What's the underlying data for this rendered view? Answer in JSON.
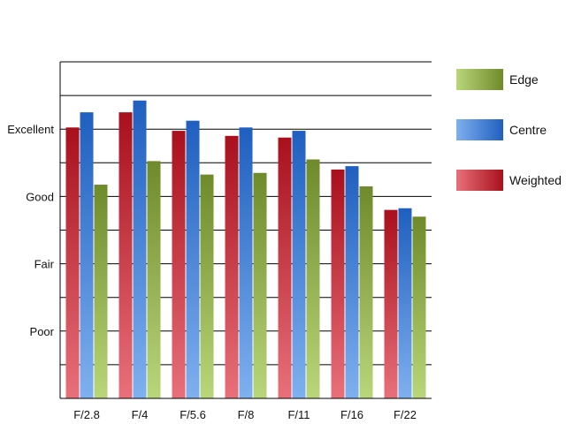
{
  "chart_data": {
    "type": "bar",
    "categories": [
      "F/2.8",
      "F/4",
      "F/5.6",
      "F/8",
      "F/11",
      "F/16",
      "F/22"
    ],
    "series": [
      {
        "name": "Weighted",
        "values": [
          8.05,
          8.5,
          7.95,
          7.8,
          7.75,
          6.8,
          5.6
        ],
        "colors": [
          "#a8101c",
          "#e8707a"
        ]
      },
      {
        "name": "Centre",
        "values": [
          8.5,
          8.85,
          8.25,
          8.05,
          7.95,
          6.9,
          5.65
        ],
        "colors": [
          "#1f5fbf",
          "#7fb0ef"
        ]
      },
      {
        "name": "Edge",
        "values": [
          6.35,
          7.05,
          6.65,
          6.7,
          7.1,
          6.3,
          5.4
        ],
        "colors": [
          "#6f8a2a",
          "#b9d67a"
        ]
      }
    ],
    "y_tick_labels": [
      {
        "value": 2,
        "label": "Poor"
      },
      {
        "value": 4,
        "label": "Fair"
      },
      {
        "value": 6,
        "label": "Good"
      },
      {
        "value": 8,
        "label": "Excellent"
      }
    ],
    "ylim": [
      0,
      10
    ],
    "gridline_step": 1,
    "grid": true,
    "legend_position": "right",
    "legend_order": [
      "Edge",
      "Centre",
      "Weighted"
    ]
  }
}
